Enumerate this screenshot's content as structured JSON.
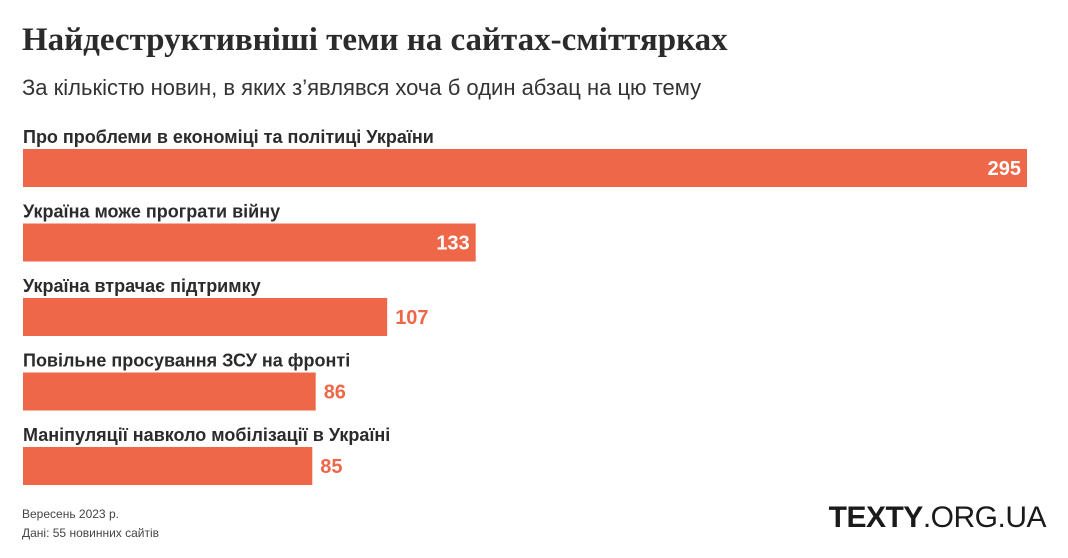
{
  "chart_data": {
    "type": "bar",
    "orientation": "horizontal",
    "title": "Найдеструктивніші теми на сайтах-сміттярках",
    "subtitle": "За кількістю новин, в яких з’являвся хоча б один абзац на цю тему",
    "categories": [
      "Про проблеми в економіці та політиці України",
      "Україна може програти війну",
      "Україна втрачає підтримку",
      "Повільне просування ЗСУ на фронті",
      "Маніпуляції навколо мобілізації в Україні"
    ],
    "values": [
      295,
      133,
      107,
      86,
      85
    ],
    "value_labels": [
      "295",
      "133",
      "107",
      "86",
      "85"
    ],
    "bar_color": "#ee6748",
    "label_color": "#2b2b2b",
    "grid": false,
    "legend": "none"
  },
  "footer": {
    "date": "Вересень 2023 р.",
    "source": "Дані: 55 новинних сайтів"
  },
  "brand": {
    "bold": "TEXTY",
    "rest": ".ORG.UA"
  },
  "colors": {
    "accent": "#ee6748",
    "text": "#2b2b2b",
    "value_inside": "#ffffff",
    "value_outside": "#ee6748"
  }
}
